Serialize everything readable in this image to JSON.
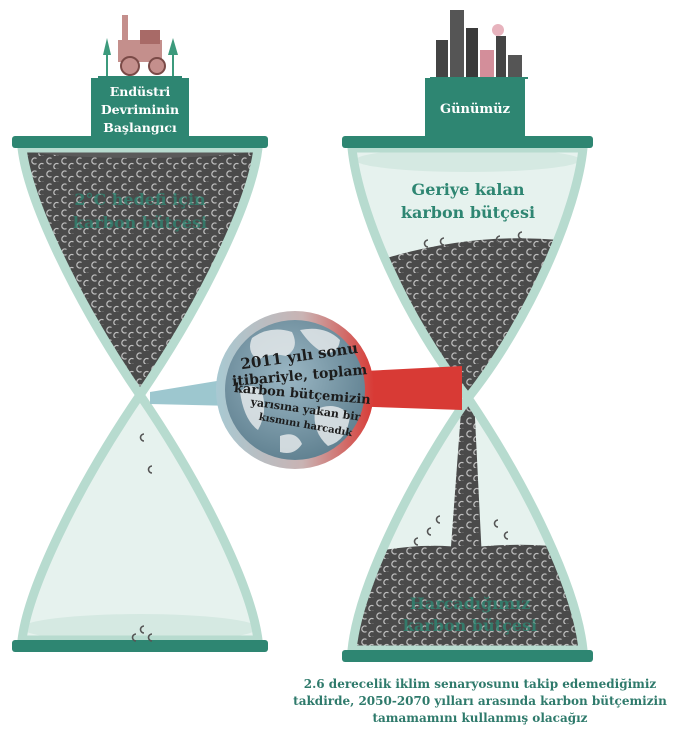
{
  "left_hourglass": {
    "sign_lines": [
      "Endüstri",
      "Devriminin",
      "Başlangıcı"
    ],
    "top_label_lines": [
      "2°C hedefi için",
      "karbon bütçesi"
    ]
  },
  "right_hourglass": {
    "sign_label": "Günümüz",
    "remaining_label_lines": [
      "Geriye kalan",
      "karbon bütçesi"
    ],
    "spent_label_lines": [
      "Harcadığımız",
      "karbon bütçesi"
    ]
  },
  "globe": {
    "text_lines": [
      "2011 yılı sonu",
      "itibariyle, toplam",
      "karbon bütçemizin",
      "yarısına yakan bir",
      "kısmını harcadık"
    ]
  },
  "caption_lines": [
    "2.6 derecelik iklim senaryosunu takip edemediğimiz",
    "takdirde, 2050-2070 yılları arasında karbon bütçemizin",
    "tamamamını kullanmış olacağız"
  ],
  "colors": {
    "teal": "#2e8672",
    "glass_stroke": "#b7dbcf",
    "glass_fill": "#e6f2ee",
    "carbon": "#4a4a4a",
    "red": "#d83a35"
  }
}
